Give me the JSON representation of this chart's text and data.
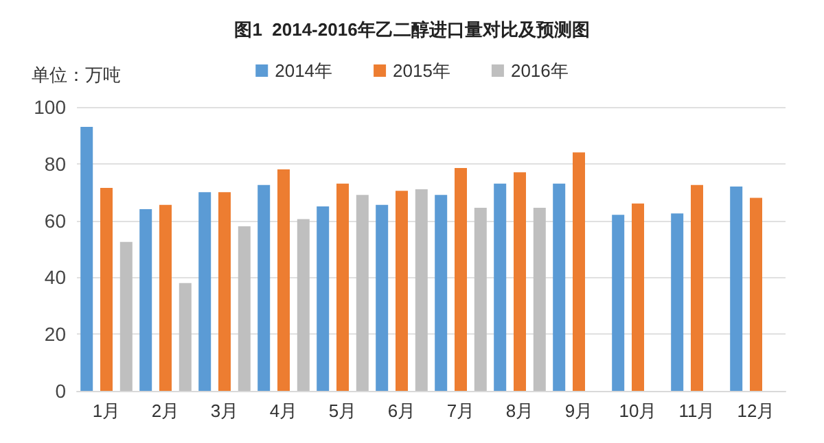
{
  "chart_data": {
    "type": "bar",
    "title": "图1  2014-2016年乙二醇进口量对比及预测图",
    "ylabel": "单位：万吨",
    "categories": [
      "1月",
      "2月",
      "3月",
      "4月",
      "5月",
      "6月",
      "7月",
      "8月",
      "9月",
      "10月",
      "11月",
      "12月"
    ],
    "series": [
      {
        "name": "2014年",
        "color": "#5b9bd5",
        "values": [
          93,
          64,
          70,
          72.5,
          65,
          65.5,
          69,
          73,
          73,
          62,
          62.5,
          72
        ]
      },
      {
        "name": "2015年",
        "color": "#ed7d31",
        "values": [
          71.5,
          65.5,
          70,
          78,
          73,
          70.5,
          78.5,
          77,
          84,
          66,
          72.5,
          68
        ]
      },
      {
        "name": "2016年",
        "color": "#bfbfbf",
        "values": [
          52.5,
          38,
          58,
          60.5,
          69,
          71,
          64.5,
          64.5,
          null,
          null,
          null,
          null
        ]
      }
    ],
    "ylim": [
      0,
      100
    ],
    "yticks": [
      0,
      20,
      40,
      60,
      80,
      100
    ],
    "grid": "y",
    "legend": "top"
  }
}
